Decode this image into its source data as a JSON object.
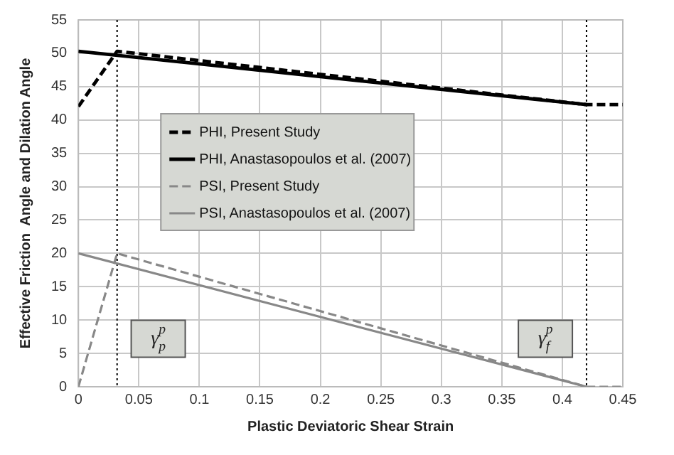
{
  "chart_data": {
    "type": "line",
    "xlabel": "Plastic Deviatoric Shear Strain",
    "ylabel": "Effective Friction  Angle and Dilation Angle",
    "xlim": [
      0,
      0.45
    ],
    "xticks": [
      0,
      0.05,
      0.1,
      0.15,
      0.2,
      0.25,
      0.3,
      0.35,
      0.4,
      0.45
    ],
    "ylim": [
      0,
      55
    ],
    "yticks": [
      0,
      5,
      10,
      15,
      20,
      25,
      30,
      35,
      40,
      45,
      50,
      55
    ],
    "grid": true,
    "legend": "center left",
    "marker": "none",
    "series": [
      {
        "name": "PHI, Present Study",
        "color": "#000000",
        "line_style": "dashed",
        "x": [
          0,
          0.032,
          0.42,
          0.45
        ],
        "values": [
          42,
          50.3,
          42.3,
          42.3
        ]
      },
      {
        "name": "PHI, Anastasopoulos et al. (2007)",
        "color": "#000000",
        "line_style": "solid",
        "x": [
          0,
          0.42
        ],
        "values": [
          50.3,
          42.3
        ]
      },
      {
        "name": "PSI, Present Study",
        "color": "#888888",
        "line_style": "dashed",
        "x": [
          0,
          0.032,
          0.42,
          0.45
        ],
        "values": [
          0,
          20,
          0,
          0
        ]
      },
      {
        "name": "PSI, Anastasopoulos et al. (2007)",
        "color": "#888888",
        "line_style": "solid",
        "x": [
          0,
          0.42
        ],
        "values": [
          20,
          0
        ]
      }
    ],
    "ref_lines": [
      {
        "axis": "x",
        "value": 0.032,
        "color": "#000000",
        "line_style": "dotted"
      },
      {
        "axis": "x",
        "value": 0.42,
        "color": "#000000",
        "line_style": "dotted"
      }
    ],
    "annotations": [
      {
        "text": "γ$^{p}$$_{p}$",
        "x": 0.066,
        "y": 7.2
      },
      {
        "text": "γ$^{p}$$_{f}$",
        "x": 0.386,
        "y": 7.2
      }
    ]
  }
}
